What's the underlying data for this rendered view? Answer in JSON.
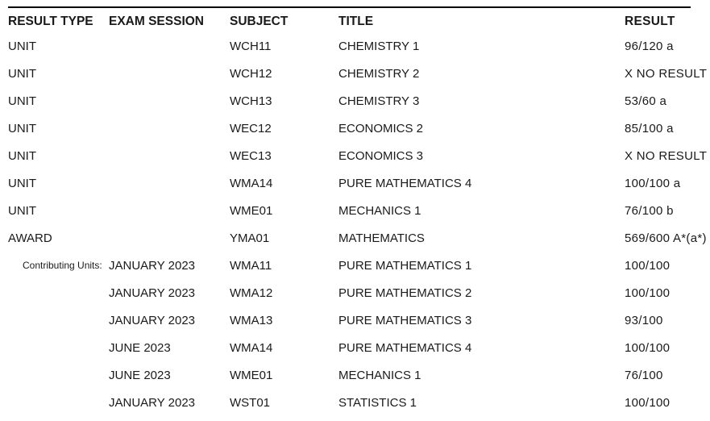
{
  "headers": {
    "result_type": "RESULT TYPE",
    "exam_session": "EXAM SESSION",
    "subject": "SUBJECT",
    "title": "TITLE",
    "result": "RESULT"
  },
  "contributing_label": "Contributing Units:",
  "rows": [
    {
      "type": "UNIT",
      "session": "",
      "subject": "WCH11",
      "title": "CHEMISTRY 1",
      "result": "96/120 a"
    },
    {
      "type": "UNIT",
      "session": "",
      "subject": "WCH12",
      "title": "CHEMISTRY 2",
      "result": "X NO RESULT"
    },
    {
      "type": "UNIT",
      "session": "",
      "subject": "WCH13",
      "title": "CHEMISTRY 3",
      "result": "53/60 a"
    },
    {
      "type": "UNIT",
      "session": "",
      "subject": "WEC12",
      "title": "ECONOMICS 2",
      "result": "85/100 a"
    },
    {
      "type": "UNIT",
      "session": "",
      "subject": "WEC13",
      "title": "ECONOMICS 3",
      "result": "X NO RESULT"
    },
    {
      "type": "UNIT",
      "session": "",
      "subject": "WMA14",
      "title": "PURE MATHEMATICS 4",
      "result": "100/100 a"
    },
    {
      "type": "UNIT",
      "session": "",
      "subject": "WME01",
      "title": "MECHANICS 1",
      "result": "76/100 b"
    },
    {
      "type": "AWARD",
      "session": "",
      "subject": "YMA01",
      "title": "MATHEMATICS",
      "result": "569/600 A*(a*)"
    }
  ],
  "contributing": [
    {
      "session": "JANUARY 2023",
      "subject": "WMA11",
      "title": "PURE MATHEMATICS 1",
      "result": "100/100"
    },
    {
      "session": "JANUARY 2023",
      "subject": "WMA12",
      "title": "PURE MATHEMATICS 2",
      "result": "100/100"
    },
    {
      "session": "JANUARY 2023",
      "subject": "WMA13",
      "title": "PURE MATHEMATICS 3",
      "result": "93/100"
    },
    {
      "session": "JUNE 2023",
      "subject": "WMA14",
      "title": "PURE MATHEMATICS 4",
      "result": "100/100"
    },
    {
      "session": "JUNE 2023",
      "subject": "WME01",
      "title": "MECHANICS 1",
      "result": "76/100"
    },
    {
      "session": "JANUARY 2023",
      "subject": "WST01",
      "title": "STATISTICS 1",
      "result": "100/100"
    }
  ]
}
